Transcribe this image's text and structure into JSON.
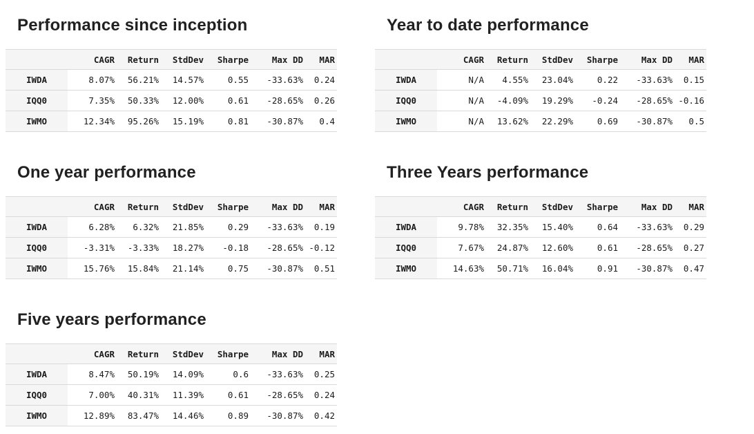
{
  "colors": {
    "page_background": "#ffffff",
    "title_text": "#212121",
    "table_text": "#1b1b1b",
    "header_and_index_background": "#f5f5f5",
    "row_border": "#d9d9d9"
  },
  "chart_data": [
    {
      "type": "table",
      "title": "Performance since inception",
      "columns": [
        "",
        "CAGR",
        "Return",
        "StdDev",
        "Sharpe",
        "Max DD",
        "MAR"
      ],
      "rows": [
        [
          "IWDA",
          "8.07%",
          "56.21%",
          "14.57%",
          "0.55",
          "-33.63%",
          "0.24"
        ],
        [
          "IQQ0",
          "7.35%",
          "50.33%",
          "12.00%",
          "0.61",
          "-28.65%",
          "0.26"
        ],
        [
          "IWMO",
          "12.34%",
          "95.26%",
          "15.19%",
          "0.81",
          "-30.87%",
          "0.4"
        ]
      ]
    },
    {
      "type": "table",
      "title": "Year to date performance",
      "columns": [
        "",
        "CAGR",
        "Return",
        "StdDev",
        "Sharpe",
        "Max DD",
        "MAR"
      ],
      "rows": [
        [
          "IWDA",
          "N/A",
          "4.55%",
          "23.04%",
          "0.22",
          "-33.63%",
          "0.15"
        ],
        [
          "IQQ0",
          "N/A",
          "-4.09%",
          "19.29%",
          "-0.24",
          "-28.65%",
          "-0.16"
        ],
        [
          "IWMO",
          "N/A",
          "13.62%",
          "22.29%",
          "0.69",
          "-30.87%",
          "0.5"
        ]
      ]
    },
    {
      "type": "table",
      "title": "One year performance",
      "columns": [
        "",
        "CAGR",
        "Return",
        "StdDev",
        "Sharpe",
        "Max DD",
        "MAR"
      ],
      "rows": [
        [
          "IWDA",
          "6.28%",
          "6.32%",
          "21.85%",
          "0.29",
          "-33.63%",
          "0.19"
        ],
        [
          "IQQ0",
          "-3.31%",
          "-3.33%",
          "18.27%",
          "-0.18",
          "-28.65%",
          "-0.12"
        ],
        [
          "IWMO",
          "15.76%",
          "15.84%",
          "21.14%",
          "0.75",
          "-30.87%",
          "0.51"
        ]
      ]
    },
    {
      "type": "table",
      "title": "Three Years performance",
      "columns": [
        "",
        "CAGR",
        "Return",
        "StdDev",
        "Sharpe",
        "Max DD",
        "MAR"
      ],
      "rows": [
        [
          "IWDA",
          "9.78%",
          "32.35%",
          "15.40%",
          "0.64",
          "-33.63%",
          "0.29"
        ],
        [
          "IQQ0",
          "7.67%",
          "24.87%",
          "12.60%",
          "0.61",
          "-28.65%",
          "0.27"
        ],
        [
          "IWMO",
          "14.63%",
          "50.71%",
          "16.04%",
          "0.91",
          "-30.87%",
          "0.47"
        ]
      ]
    },
    {
      "type": "table",
      "title": "Five years performance",
      "columns": [
        "",
        "CAGR",
        "Return",
        "StdDev",
        "Sharpe",
        "Max DD",
        "MAR"
      ],
      "rows": [
        [
          "IWDA",
          "8.47%",
          "50.19%",
          "14.09%",
          "0.6",
          "-33.63%",
          "0.25"
        ],
        [
          "IQQ0",
          "7.00%",
          "40.31%",
          "11.39%",
          "0.61",
          "-28.65%",
          "0.24"
        ],
        [
          "IWMO",
          "12.89%",
          "83.47%",
          "14.46%",
          "0.89",
          "-30.87%",
          "0.42"
        ]
      ]
    }
  ]
}
